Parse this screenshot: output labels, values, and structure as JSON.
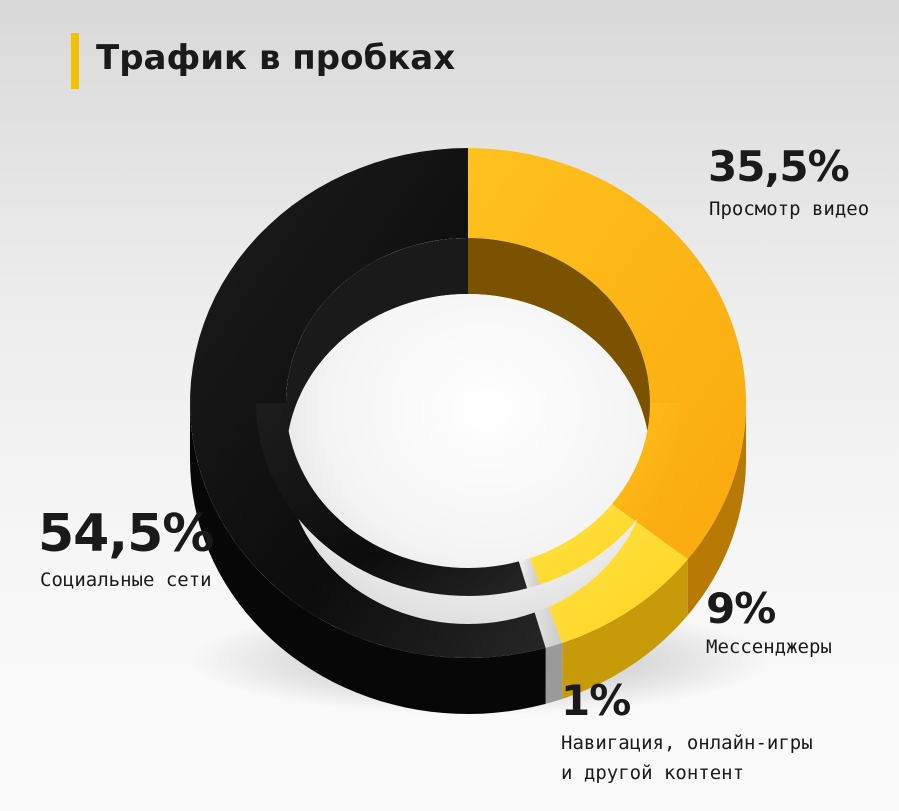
{
  "title": "Трафик в пробках",
  "colors": {
    "accent": "#f2c200",
    "video": "#fdb714",
    "messengers": "#ffd92a",
    "navigation": "#dcdcdc",
    "social": "#111111"
  },
  "chart_data": {
    "type": "pie",
    "title": "Трафик в пробках",
    "donut": true,
    "slices": [
      {
        "label": "Просмотр видео",
        "value": 35.5,
        "display": "35,5%"
      },
      {
        "label": "Мессенджеры",
        "value": 9,
        "display": "9%"
      },
      {
        "label": "Навигация, онлайн-игры и другой контент",
        "label_lines": [
          "Навигация, онлайн-игры",
          "и другой контент"
        ],
        "value": 1,
        "display": "1%"
      },
      {
        "label": "Социальные сети",
        "value": 54.5,
        "display": "54,5%"
      }
    ]
  }
}
